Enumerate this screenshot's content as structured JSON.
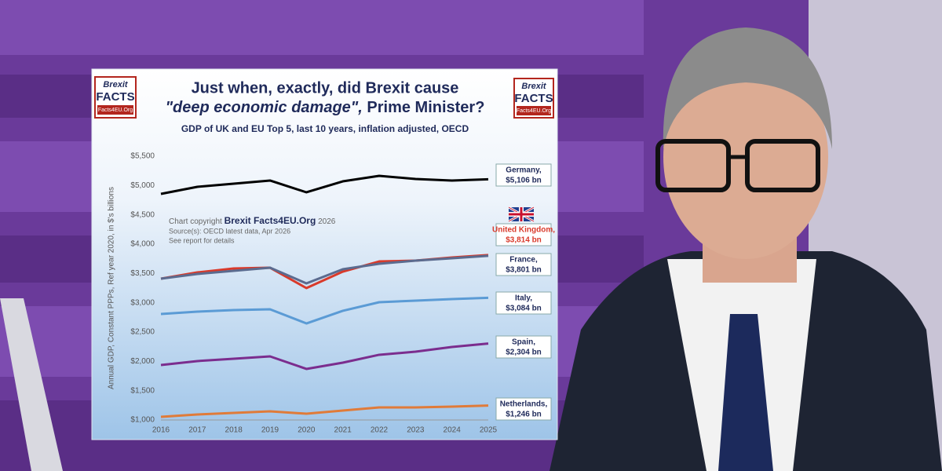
{
  "chart_data": {
    "type": "line",
    "title_line1": "Just when, exactly, did Brexit cause",
    "title_line2_italic": "\"deep economic damage\",",
    "title_line2_rest": "Prime Minister?",
    "subtitle": "GDP of UK and EU Top 5, last 10 years, inflation adjusted, OECD",
    "y_label": "Annual GDP, Constant PPPs, Ref year 2020, in $'s billions",
    "logo": {
      "top": "Brexit",
      "middle": "FACTS",
      "bottom": "Facts4EU.Org"
    },
    "annotation": {
      "prefix": "Chart copyright",
      "brand": "Brexit Facts4EU.Org",
      "year": "2026",
      "source": "Source(s): OECD latest data, Apr 2026",
      "note": "See report for details"
    },
    "x": [
      2016,
      2017,
      2018,
      2019,
      2020,
      2021,
      2022,
      2023,
      2024,
      2025
    ],
    "xlim": [
      2016,
      2025
    ],
    "xticks": [
      2016,
      2017,
      2018,
      2019,
      2020,
      2021,
      2022,
      2023,
      2024,
      2025
    ],
    "ylim": [
      1000,
      5500
    ],
    "yticks": [
      {
        "value": 1000,
        "label": "$1,000"
      },
      {
        "value": 1500,
        "label": "$1,500"
      },
      {
        "value": 2000,
        "label": "$2,000"
      },
      {
        "value": 2500,
        "label": "$2,500"
      },
      {
        "value": 3000,
        "label": "$3,000"
      },
      {
        "value": 3500,
        "label": "$3,500"
      },
      {
        "value": 4000,
        "label": "$4,000"
      },
      {
        "value": 4500,
        "label": "$4,500"
      },
      {
        "value": 5000,
        "label": "$5,000"
      },
      {
        "value": 5500,
        "label": "$5,500"
      }
    ],
    "grid": false,
    "series": [
      {
        "name": "Germany,",
        "color": "#000000",
        "values": [
          4857,
          4978,
          5031,
          5085,
          4884,
          5071,
          5165,
          5112,
          5085,
          5106
        ],
        "value_labels": [
          null,
          null,
          null,
          null,
          null,
          null,
          null,
          null,
          null,
          "$5,106 bn"
        ]
      },
      {
        "name": "United Kingdom,",
        "color": "#d93a2b",
        "values": [
          3411,
          3518,
          3585,
          3598,
          3250,
          3531,
          3705,
          3719,
          3772,
          3814
        ],
        "value_labels": [
          null,
          null,
          null,
          null,
          null,
          null,
          null,
          null,
          null,
          "$3,814 bn"
        ]
      },
      {
        "name": "France,",
        "color": "#5b6b8f",
        "values": [
          3411,
          3491,
          3545,
          3598,
          3330,
          3571,
          3665,
          3719,
          3759,
          3801
        ],
        "value_labels": [
          null,
          null,
          null,
          null,
          null,
          null,
          null,
          null,
          null,
          "$3,801 bn"
        ]
      },
      {
        "name": "Italy,",
        "color": "#5b9bd5",
        "values": [
          2808,
          2848,
          2875,
          2888,
          2647,
          2862,
          3009,
          3036,
          3063,
          3084
        ],
        "value_labels": [
          null,
          null,
          null,
          null,
          null,
          null,
          null,
          null,
          null,
          "$3,084 bn"
        ]
      },
      {
        "name": "Spain,",
        "color": "#7b2d8e",
        "values": [
          1938,
          2005,
          2045,
          2085,
          1871,
          1978,
          2112,
          2165,
          2246,
          2304
        ],
        "value_labels": [
          null,
          null,
          null,
          null,
          null,
          null,
          null,
          null,
          null,
          "$2,304 bn"
        ]
      },
      {
        "name": "Netherlands,",
        "color": "#e07b39",
        "values": [
          1054,
          1094,
          1121,
          1147,
          1107,
          1161,
          1214,
          1214,
          1228,
          1246
        ],
        "value_labels": [
          null,
          null,
          null,
          null,
          null,
          null,
          null,
          null,
          null,
          "$1,246 bn"
        ]
      }
    ]
  }
}
